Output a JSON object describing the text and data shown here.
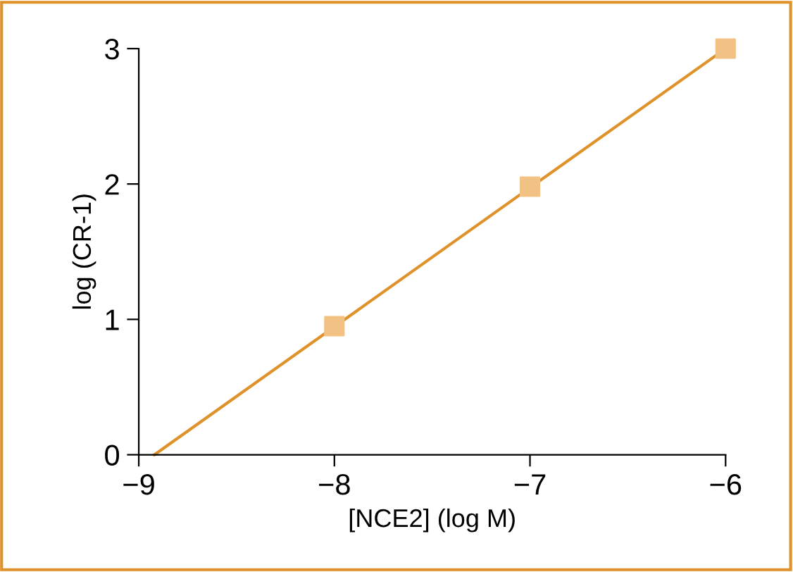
{
  "chart_data": {
    "type": "scatter",
    "xlabel": "[NCE2] (log M)",
    "ylabel": "log (CR-1)",
    "x": [
      -8,
      -7,
      -6
    ],
    "series": [
      {
        "color": "#f2c184",
        "values": [
          0.95,
          1.98,
          3.0
        ],
        "marker": "square"
      },
      {
        "type": "line",
        "color": "#e0922a",
        "x": [
          -8.92,
          -6
        ],
        "values": [
          0,
          3.0
        ],
        "marker": "none"
      }
    ],
    "xlim": [
      -9,
      -6
    ],
    "xticks": [
      {
        "value": -9,
        "label": "−9"
      },
      {
        "value": -8,
        "label": "−8"
      },
      {
        "value": -7,
        "label": "−7"
      },
      {
        "value": -6,
        "label": "−6"
      }
    ],
    "ylim": [
      0,
      3
    ],
    "yticks": [
      0,
      1,
      2,
      3
    ],
    "grid": false,
    "legend": false
  }
}
